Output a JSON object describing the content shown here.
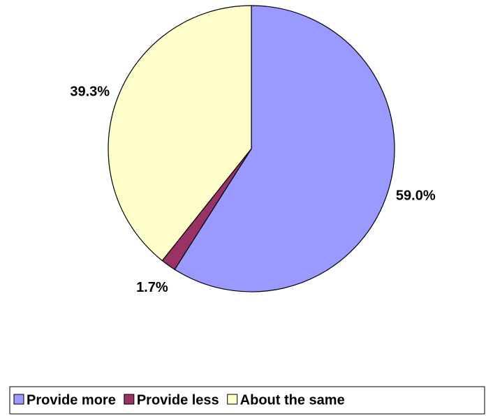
{
  "chart_data": {
    "type": "pie",
    "categories": [
      "Provide more",
      "Provide less",
      "About the same"
    ],
    "values": [
      59.0,
      1.7,
      39.3
    ],
    "value_labels": [
      "59.0%",
      "1.7%",
      "39.3%"
    ],
    "colors": [
      "#9999ff",
      "#993366",
      "#ffffcc"
    ],
    "legend": "bottom"
  }
}
